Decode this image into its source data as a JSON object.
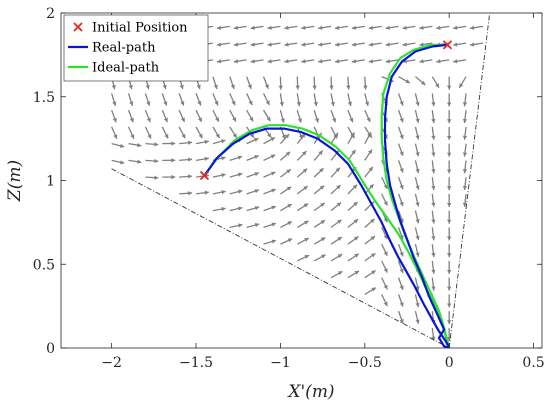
{
  "chart_data": {
    "type": "line",
    "xlabel": "X'(m)",
    "ylabel": "Z(m)",
    "xlim": [
      -2.3,
      0.55
    ],
    "ylim": [
      0,
      2
    ],
    "xticks": [
      -2,
      -1.5,
      -1,
      -0.5,
      0,
      0.5
    ],
    "yticks": [
      0,
      0.5,
      1,
      1.5,
      2
    ],
    "xtick_labels": [
      "−2",
      "−1.5",
      "−1",
      "−0.5",
      "0",
      "0.5"
    ],
    "ytick_labels": [
      "0",
      "0.5",
      "1",
      "1.5",
      "2"
    ],
    "grid": false,
    "legend_position": "top-left",
    "legend": [
      {
        "label": "Initial Position",
        "marker": "x",
        "color": "#e8281e"
      },
      {
        "label": "Real-path",
        "color": "#0b14d4"
      },
      {
        "label": "Ideal-path",
        "color": "#2fe02f"
      }
    ],
    "initial_positions": [
      [
        -1.45,
        1.03
      ],
      [
        -0.01,
        1.81
      ]
    ],
    "series": [
      {
        "name": "Real-path",
        "color": "#0b14d4",
        "paths": [
          [
            [
              -1.45,
              1.03
            ],
            [
              -1.38,
              1.13
            ],
            [
              -1.28,
              1.22
            ],
            [
              -1.18,
              1.28
            ],
            [
              -1.08,
              1.31
            ],
            [
              -0.98,
              1.31
            ],
            [
              -0.88,
              1.29
            ],
            [
              -0.78,
              1.25
            ],
            [
              -0.68,
              1.18
            ],
            [
              -0.6,
              1.1
            ],
            [
              -0.52,
              0.97
            ],
            [
              -0.46,
              0.86
            ],
            [
              -0.4,
              0.75
            ],
            [
              -0.35,
              0.64
            ],
            [
              -0.3,
              0.54
            ],
            [
              -0.25,
              0.45
            ],
            [
              -0.2,
              0.36
            ],
            [
              -0.15,
              0.26
            ],
            [
              -0.1,
              0.17
            ],
            [
              -0.06,
              0.1
            ],
            [
              -0.02,
              0.04
            ],
            [
              0.0,
              0.0
            ]
          ],
          [
            [
              -0.01,
              1.81
            ],
            [
              -0.1,
              1.8
            ],
            [
              -0.2,
              1.77
            ],
            [
              -0.28,
              1.71
            ],
            [
              -0.34,
              1.62
            ],
            [
              -0.37,
              1.5
            ],
            [
              -0.38,
              1.37
            ],
            [
              -0.38,
              1.24
            ],
            [
              -0.37,
              1.1
            ],
            [
              -0.35,
              0.97
            ],
            [
              -0.32,
              0.86
            ],
            [
              -0.29,
              0.76
            ],
            [
              -0.25,
              0.65
            ],
            [
              -0.21,
              0.54
            ],
            [
              -0.16,
              0.42
            ],
            [
              -0.12,
              0.31
            ],
            [
              -0.07,
              0.2
            ],
            [
              -0.03,
              0.11
            ],
            [
              -0.06,
              0.06
            ],
            [
              -0.03,
              0.01
            ],
            [
              0.0,
              0.0
            ]
          ]
        ]
      },
      {
        "name": "Ideal-path",
        "color": "#2fe02f",
        "paths": [
          [
            [
              -1.45,
              1.03
            ],
            [
              -1.37,
              1.14
            ],
            [
              -1.27,
              1.24
            ],
            [
              -1.17,
              1.3
            ],
            [
              -1.07,
              1.33
            ],
            [
              -0.97,
              1.33
            ],
            [
              -0.87,
              1.31
            ],
            [
              -0.77,
              1.27
            ],
            [
              -0.67,
              1.2
            ],
            [
              -0.59,
              1.12
            ],
            [
              -0.51,
              0.99
            ],
            [
              -0.44,
              0.88
            ],
            [
              -0.37,
              0.78
            ],
            [
              -0.3,
              0.68
            ],
            [
              -0.24,
              0.57
            ],
            [
              -0.18,
              0.45
            ],
            [
              -0.13,
              0.34
            ],
            [
              -0.08,
              0.24
            ],
            [
              -0.04,
              0.14
            ],
            [
              -0.02,
              0.07
            ],
            [
              0.0,
              0.0
            ]
          ],
          [
            [
              -0.01,
              1.81
            ],
            [
              -0.11,
              1.81
            ],
            [
              -0.21,
              1.78
            ],
            [
              -0.29,
              1.73
            ],
            [
              -0.35,
              1.64
            ],
            [
              -0.39,
              1.52
            ],
            [
              -0.4,
              1.39
            ],
            [
              -0.4,
              1.26
            ],
            [
              -0.39,
              1.13
            ],
            [
              -0.37,
              1.0
            ],
            [
              -0.34,
              0.89
            ],
            [
              -0.3,
              0.78
            ],
            [
              -0.26,
              0.67
            ],
            [
              -0.21,
              0.55
            ],
            [
              -0.16,
              0.44
            ],
            [
              -0.11,
              0.33
            ],
            [
              -0.06,
              0.22
            ],
            [
              -0.03,
              0.12
            ],
            [
              -0.01,
              0.04
            ],
            [
              0.0,
              0.0
            ]
          ]
        ]
      }
    ],
    "boundary_lines": [
      [
        [
          -2.0,
          1.07
        ],
        [
          0.0,
          0.0
        ]
      ],
      [
        [
          0.0,
          0.0
        ],
        [
          0.24,
          2.0
        ]
      ]
    ],
    "vector_field": {
      "arrow_color": "#808080",
      "region": "fan sector between boundary lines"
    }
  }
}
